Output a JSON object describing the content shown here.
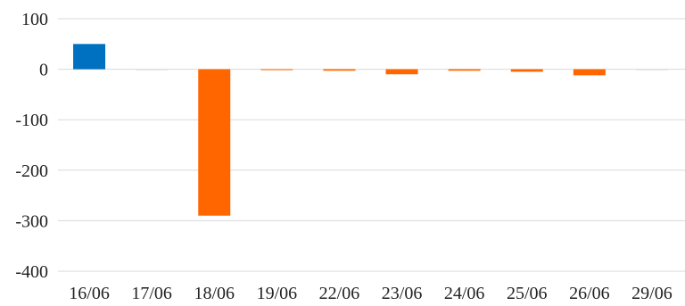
{
  "chart_data": {
    "type": "bar",
    "title": "",
    "xlabel": "",
    "ylabel": "",
    "categories": [
      "16/06",
      "17/06",
      "18/06",
      "19/06",
      "22/06",
      "23/06",
      "24/06",
      "25/06",
      "26/06",
      "29/06"
    ],
    "values": [
      50,
      0,
      -290,
      -1,
      -3,
      -10,
      -3,
      -5,
      -12,
      0
    ],
    "ylim": [
      -400,
      100
    ],
    "yticks": [
      100,
      0,
      -100,
      -200,
      -300,
      -400
    ],
    "ytick_labels": [
      "100",
      "0",
      "-100",
      "-200",
      "-300",
      "-400"
    ],
    "grid": true,
    "legend": "none",
    "colors": {
      "positive": "#0070C0",
      "negative": "#FF6600",
      "grid": "#D9D9D9"
    }
  }
}
